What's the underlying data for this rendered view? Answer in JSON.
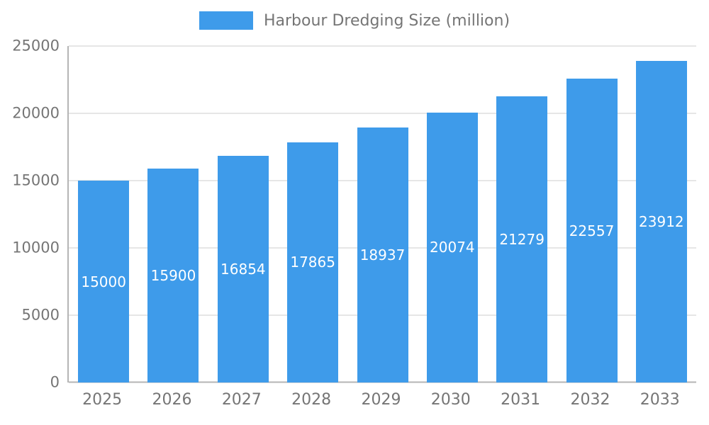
{
  "legend": {
    "label": "Harbour Dredging Size (million)"
  },
  "chart_data": {
    "type": "bar",
    "title": "Harbour Dredging Size (million)",
    "categories": [
      "2025",
      "2026",
      "2027",
      "2028",
      "2029",
      "2030",
      "2031",
      "2032",
      "2033"
    ],
    "values": [
      15000,
      15900,
      16854,
      17865,
      18937,
      20074,
      21279,
      22557,
      23912
    ],
    "xlabel": "",
    "ylabel": "",
    "ylim": [
      0,
      25000
    ],
    "yticks": [
      0,
      5000,
      10000,
      15000,
      20000,
      25000
    ],
    "grid": true,
    "legend_position": "top",
    "bar_color": "#3E9BEA",
    "value_label_color": "#ffffff",
    "axis_text_color": "#757575",
    "gridline_color": "#cccccc"
  }
}
